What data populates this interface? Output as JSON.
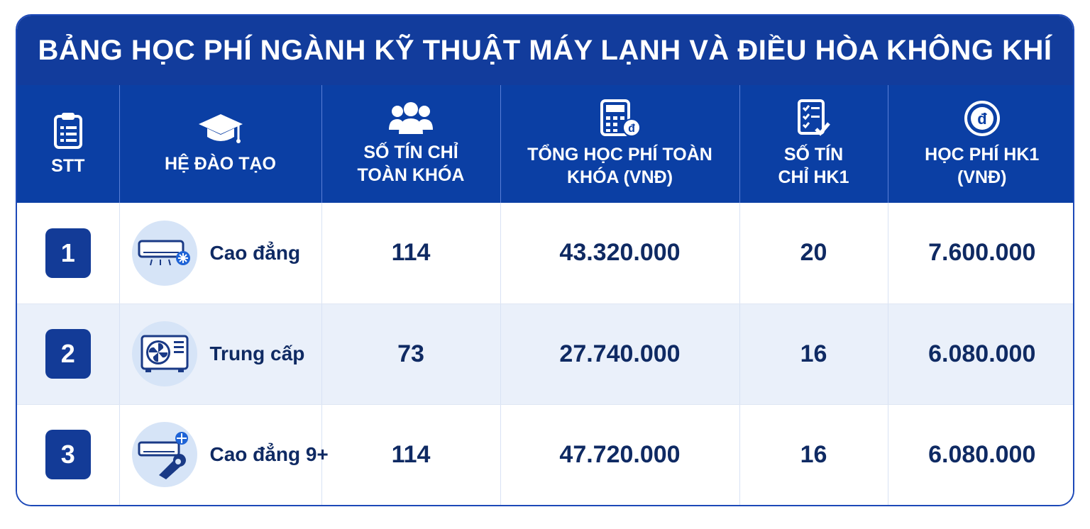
{
  "title": "BẢNG HỌC PHÍ NGÀNH KỸ THUẬT MÁY LẠNH VÀ ĐIỀU HÒA KHÔNG KHÍ",
  "colors": {
    "header_bg": "#123c9c",
    "header_row_bg": "#0b3fa4",
    "badge_bg": "#133b97",
    "text_dark": "#0f2a63",
    "alt_row": "#eaf0fa"
  },
  "columns": [
    {
      "icon": "clipboard-icon",
      "label": "STT"
    },
    {
      "icon": "graduation-cap-icon",
      "label": "HỆ ĐÀO TẠO"
    },
    {
      "icon": "users-icon",
      "label_line1": "SỐ TÍN CHỈ",
      "label_line2": "TOÀN KHÓA"
    },
    {
      "icon": "calculator-icon",
      "label_line1": "TỔNG HỌC PHÍ TOÀN",
      "label_line2": "KHÓA (VNĐ)"
    },
    {
      "icon": "checklist-icon",
      "label_line1": "SỐ TÍN",
      "label_line2": "CHỈ HK1"
    },
    {
      "icon": "dong-coin-icon",
      "label_line1": "HỌC PHÍ HK1",
      "label_line2": "(VNĐ)"
    }
  ],
  "rows": [
    {
      "stt": "1",
      "icon": "air-conditioner-icon",
      "program": "Cao đẳng",
      "credits_total": "114",
      "fee_total": "43.320.000",
      "credits_hk1": "20",
      "fee_hk1": "7.600.000"
    },
    {
      "stt": "2",
      "icon": "outdoor-unit-icon",
      "program": "Trung cấp",
      "credits_total": "73",
      "fee_total": "27.740.000",
      "credits_hk1": "16",
      "fee_hk1": "6.080.000"
    },
    {
      "stt": "3",
      "icon": "ac-wrench-icon",
      "program": "Cao đẳng 9+",
      "credits_total": "114",
      "fee_total": "47.720.000",
      "credits_hk1": "16",
      "fee_hk1": "6.080.000"
    }
  ]
}
